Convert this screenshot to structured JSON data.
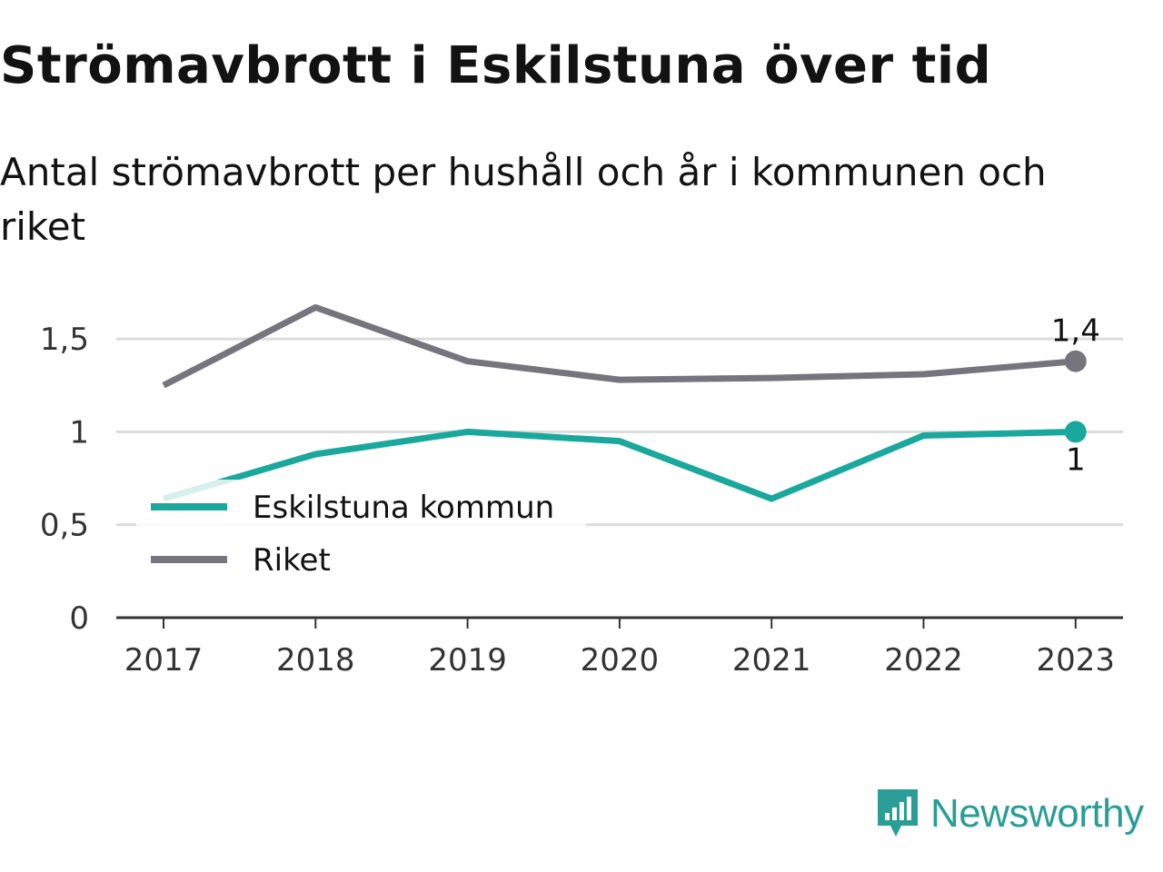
{
  "title": "Strömavbrott i Eskilstuna över tid",
  "subtitle": "Antal strömavbrott per hushåll och år i kommunen och riket",
  "brand": {
    "name": "Newsworthy",
    "color": "#2a9d96"
  },
  "chart_data": {
    "type": "line",
    "title": "Strömavbrott i Eskilstuna över tid",
    "subtitle": "Antal strömavbrott per hushåll och år i kommunen och riket",
    "xlabel": "",
    "ylabel": "",
    "categories": [
      "2017",
      "2018",
      "2019",
      "2020",
      "2021",
      "2022",
      "2023"
    ],
    "ylim": [
      0,
      1.75
    ],
    "yticks": [
      {
        "value": 0,
        "label": "0"
      },
      {
        "value": 0.5,
        "label": "0,5"
      },
      {
        "value": 1,
        "label": "1"
      },
      {
        "value": 1.5,
        "label": "1,5"
      }
    ],
    "grid": true,
    "legend_position": "bottom-left",
    "series": [
      {
        "name": "Eskilstuna kommun",
        "color": "#1aa89c",
        "values": [
          0.64,
          0.88,
          1.0,
          0.95,
          0.64,
          0.98,
          1.0
        ],
        "end_label": "1"
      },
      {
        "name": "Riket",
        "color": "#76757d",
        "values": [
          1.25,
          1.67,
          1.38,
          1.28,
          1.29,
          1.31,
          1.38
        ],
        "end_label": "1,4"
      }
    ]
  }
}
